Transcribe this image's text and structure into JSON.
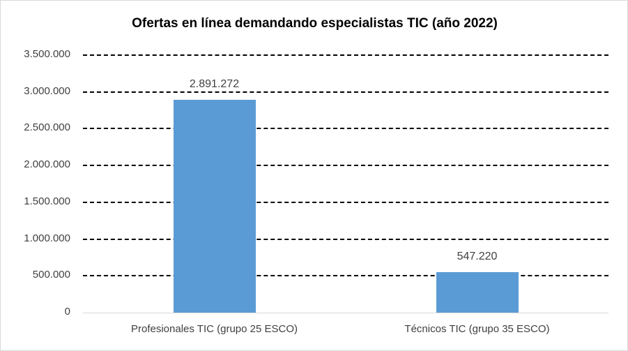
{
  "chart_data": {
    "type": "bar",
    "title": "Ofertas en línea demandando especialistas TIC (año 2022)",
    "categories": [
      "Profesionales TIC (grupo 25 ESCO)",
      "Técnicos TIC (grupo 35 ESCO)"
    ],
    "values": [
      2891272,
      547220
    ],
    "data_labels": [
      "2.891.272",
      "547.220"
    ],
    "xlabel": "",
    "ylabel": "",
    "ylim": [
      0,
      3500000
    ],
    "yticks": [
      0,
      500000,
      1000000,
      1500000,
      2000000,
      2500000,
      3000000,
      3500000
    ],
    "ytick_labels": [
      "0",
      "500.000",
      "1.000.000",
      "1.500.000",
      "2.000.000",
      "2.500.000",
      "3.000.000",
      "3.500.000"
    ],
    "grid": true,
    "grid_style": "dashed",
    "legend": false,
    "bar_color": "#5b9bd5"
  }
}
